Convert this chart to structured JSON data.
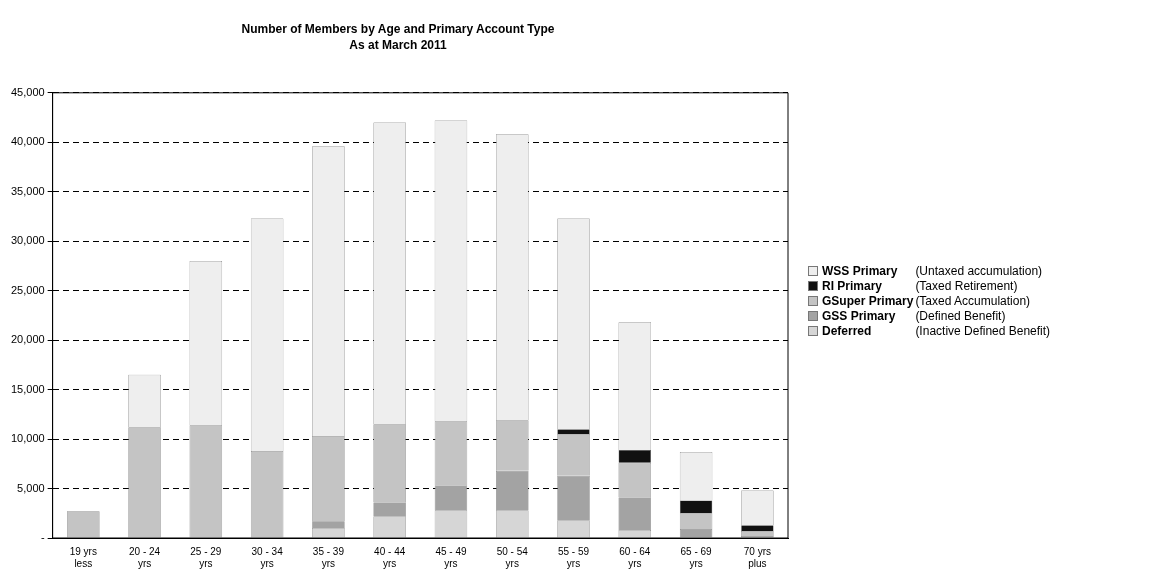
{
  "chart_data": {
    "type": "bar",
    "title": "Number of Members by Age and Primary Account Type",
    "subtitle": "As at March 2011",
    "categories": [
      "19 yrs less",
      "20 - 24 yrs",
      "25 - 29 yrs",
      "30 - 34 yrs",
      "35 - 39 yrs",
      "40 - 44 yrs",
      "45 - 49 yrs",
      "50 - 54 yrs",
      "55 - 59 yrs",
      "60 - 64 yrs",
      "65 - 69 yrs",
      "70 yrs plus"
    ],
    "stacked": true,
    "series": [
      {
        "name": "Deferred",
        "color": "#d6d6d6",
        "values": [
          0,
          0,
          0,
          0,
          1000,
          2200,
          2800,
          2800,
          1800,
          800,
          0,
          0
        ]
      },
      {
        "name": "GSS Primary",
        "color": "#a3a3a3",
        "values": [
          0,
          0,
          0,
          0,
          700,
          1400,
          2500,
          4000,
          4500,
          3300,
          900,
          200
        ]
      },
      {
        "name": "GSuper Primary",
        "color": "#c4c4c4",
        "values": [
          2700,
          11200,
          11400,
          8800,
          8600,
          7900,
          6500,
          5100,
          4200,
          3500,
          1600,
          500
        ]
      },
      {
        "name": "RI Primary",
        "color": "#111111",
        "values": [
          0,
          0,
          0,
          0,
          0,
          0,
          0,
          0,
          500,
          1300,
          1300,
          600
        ]
      },
      {
        "name": "WSS Primary",
        "color": "#eeeeee",
        "values": [
          0,
          5300,
          16600,
          23500,
          29300,
          30500,
          30400,
          28900,
          21300,
          12900,
          4900,
          3500
        ]
      }
    ],
    "ylim": [
      0,
      45000
    ],
    "yticks": [
      {
        "value": 0,
        "label": "-"
      },
      {
        "value": 5000,
        "label": "5,000"
      },
      {
        "value": 10000,
        "label": "10,000"
      },
      {
        "value": 15000,
        "label": "15,000"
      },
      {
        "value": 20000,
        "label": "20,000"
      },
      {
        "value": 25000,
        "label": "25,000"
      },
      {
        "value": 30000,
        "label": "30,000"
      },
      {
        "value": 35000,
        "label": "35,000"
      },
      {
        "value": 40000,
        "label": "40,000"
      },
      {
        "value": 45000,
        "label": "45,000"
      }
    ],
    "grid": "y",
    "line_style": "dashed",
    "legend": "right",
    "annotations": [
      "(Inactive Defined Benefit)",
      "(Defined Benefit)",
      "(Taxed Accumulation)",
      "(Taxed Retirement)",
      "(Untaxed accumulation)"
    ]
  }
}
